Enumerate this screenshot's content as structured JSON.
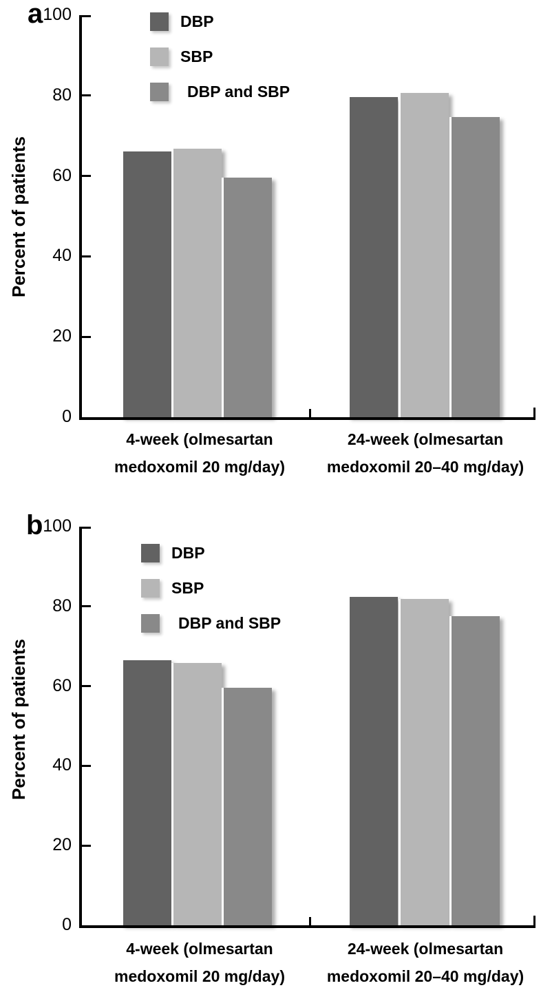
{
  "figure_title": "",
  "chart_data": [
    {
      "type": "bar",
      "panel": "a",
      "ylabel": "Percent of patients",
      "ylim": [
        0,
        100
      ],
      "yticks": [
        100,
        80,
        60,
        40,
        20,
        0
      ],
      "grid": false,
      "legend_position": "inside-top-left",
      "categories": [
        "4-week (olmesartan medoxomil 20 mg/day)",
        "24-week (olmesartan medoxomil 20–40 mg/day)"
      ],
      "category_lines": [
        [
          "4-week (olmesartan",
          "medoxomil 20 mg/day)"
        ],
        [
          "24-week (olmesartan",
          "medoxomil 20–40 mg/day)"
        ]
      ],
      "series": [
        {
          "name": "DBP",
          "color": "#626262",
          "values": [
            66.1,
            79.7
          ]
        },
        {
          "name": "SBP",
          "color": "#b6b6b6",
          "values": [
            66.8,
            80.6
          ]
        },
        {
          "name": "DBP and SBP",
          "color": "#898989",
          "values": [
            59.6,
            74.7
          ]
        }
      ]
    },
    {
      "type": "bar",
      "panel": "b",
      "ylabel": "Percent of patients",
      "ylim": [
        0,
        100
      ],
      "yticks": [
        100,
        80,
        60,
        40,
        20,
        0
      ],
      "grid": false,
      "legend_position": "inside-top-left",
      "categories": [
        "4-week (olmesartan medoxomil 20 mg/day)",
        "24-week (olmesartan medoxomil 20–40 mg/day)"
      ],
      "category_lines": [
        [
          "4-week (olmesartan",
          "medoxomil 20 mg/day)"
        ],
        [
          "24-week (olmesartan",
          "medoxomil 20–40 mg/day)"
        ]
      ],
      "series": [
        {
          "name": "DBP",
          "color": "#626262",
          "values": [
            66.5,
            82.4
          ]
        },
        {
          "name": "SBP",
          "color": "#b6b6b6",
          "values": [
            65.8,
            81.9
          ]
        },
        {
          "name": "DBP and SBP",
          "color": "#898989",
          "values": [
            59.6,
            77.5
          ]
        }
      ]
    }
  ]
}
